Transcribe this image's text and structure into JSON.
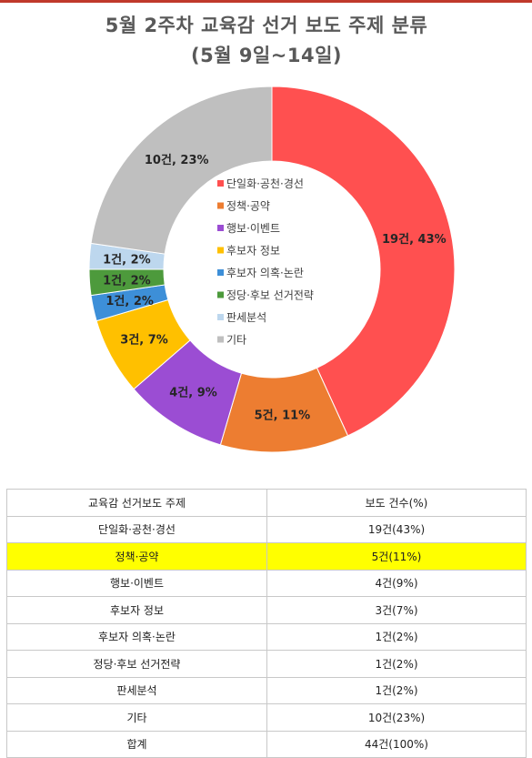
{
  "chart_data": {
    "type": "pie",
    "subtype": "donut",
    "title": "5월 2주차 교육감 선거 보도 주제 분류",
    "subtitle": "(5월 9일~14일)",
    "legend_position": "center",
    "categories": [
      "단일화·공천·경선",
      "정책·공약",
      "행보·이벤트",
      "후보자 정보",
      "후보자 의혹·논란",
      "정당·후보 선거전략",
      "판세분석",
      "기타"
    ],
    "values": [
      19,
      5,
      4,
      3,
      1,
      1,
      1,
      10
    ],
    "labels": [
      "19건, 43%",
      "5건, 11%",
      "4건, 9%",
      "3건, 7%",
      "1건, 2%",
      "1건, 2%",
      "1건, 2%",
      "10건, 23%"
    ],
    "colors": [
      "#ff5050",
      "#ed7d31",
      "#9b4dd3",
      "#ffc000",
      "#3d8fd8",
      "#4d9a3c",
      "#bdd7ee",
      "#bfbfbf"
    ]
  },
  "table": {
    "headers": [
      "교육감 선거보도 주제",
      "보도 건수(%)"
    ],
    "rows": [
      {
        "topic": "단일화·공천·경선",
        "count": "19건(43%)",
        "highlight": false
      },
      {
        "topic": "정책·공약",
        "count": "5건(11%)",
        "highlight": true
      },
      {
        "topic": "행보·이벤트",
        "count": "4건(9%)",
        "highlight": false
      },
      {
        "topic": "후보자 정보",
        "count": "3건(7%)",
        "highlight": false
      },
      {
        "topic": "후보자 의혹·논란",
        "count": "1건(2%)",
        "highlight": false
      },
      {
        "topic": "정당·후보 선거전략",
        "count": "1건(2%)",
        "highlight": false
      },
      {
        "topic": "판세분석",
        "count": "1건(2%)",
        "highlight": false
      },
      {
        "topic": "기타",
        "count": "10건(23%)",
        "highlight": false
      },
      {
        "topic": "합계",
        "count": "44건(100%)",
        "highlight": false
      }
    ]
  }
}
